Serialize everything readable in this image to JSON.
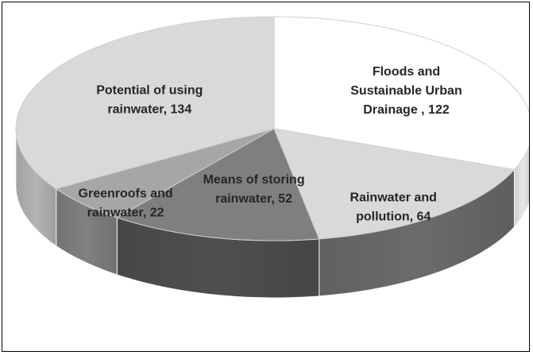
{
  "chart_data": {
    "type": "pie",
    "style": "3d",
    "title": "",
    "categories": [
      "Floods and Sustainable Urban Drainage",
      "Rainwater and pollution",
      "Means of storing rainwater",
      "Greenroofs and rainwater",
      "Potential of using rainwater"
    ],
    "values": [
      122,
      64,
      52,
      22,
      134
    ],
    "labels": [
      [
        "Floods and",
        "Sustainable Urban",
        "Drainage , 122"
      ],
      [
        "Rainwater and",
        "pollution, 64"
      ],
      [
        "Means of storing",
        "rainwater, 52"
      ],
      [
        "Greenroofs and",
        "rainwater, 22"
      ],
      [
        "Potential of using",
        "rainwater, 134"
      ]
    ],
    "colors": [
      "#ffffff",
      "#d9d9d9",
      "#7f7f7f",
      "#a6a6a6",
      "#d9d9d9"
    ],
    "side_colors": [
      "#e6e6e6",
      "#6b6b6b",
      "#4f4f4f",
      "#808080",
      "#b3b3b3"
    ],
    "legend": "none"
  }
}
